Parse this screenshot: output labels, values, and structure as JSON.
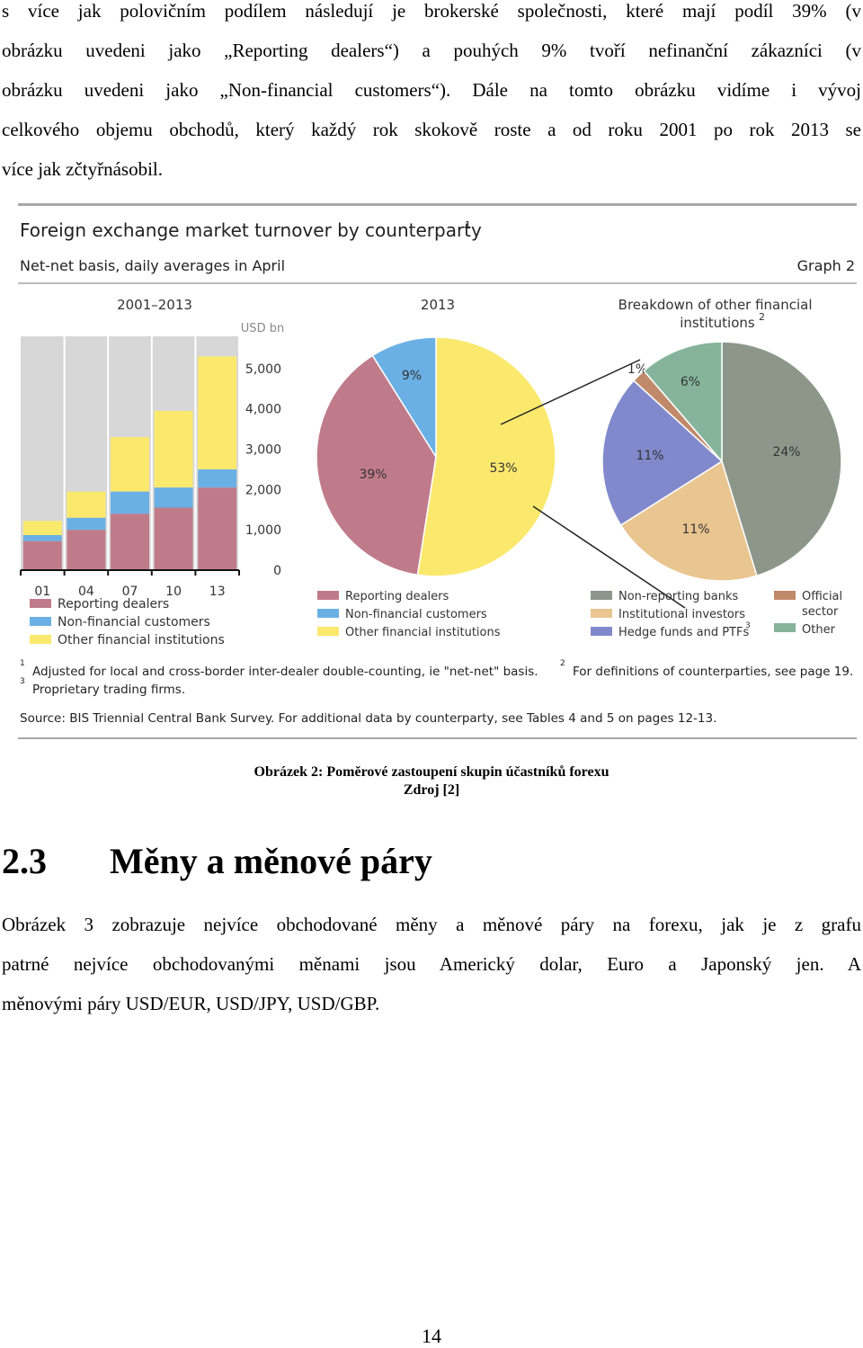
{
  "top_paragraph": {
    "lines": [
      "s více jak polovičním podílem následují je brokerské společnosti, které mají podíl 39% (v",
      "obrázku uvedeni jako „Reporting dealers“) a pouhých 9% tvoří nefinanční zákazníci (v",
      "obrázku uvedeni jako „Non-financial customers“). Dále na tomto obrázku vidíme i vývoj",
      "celkového objemu obchodů, který každý rok skokově roste a od roku 2001 po rok 2013 se",
      "více jak zčtyřnásobil."
    ]
  },
  "figure": {
    "title": "Foreign exchange market turnover by counterparty",
    "title_sup": "1",
    "subtitle": "Net-net basis, daily averages in April",
    "graph_label": "Graph 2",
    "colors": {
      "reporting": "#c07b8a",
      "nonfinancial": "#6ab0e4",
      "other_fin": "#fbe96e",
      "nonreporting": "#8c978a",
      "institutional": "#e9c590",
      "hedge": "#8189cc",
      "official": "#c08a6a",
      "other": "#85b49b",
      "plot_bg": "#d7d7d7"
    },
    "footnotes": [
      {
        "mark": "1",
        "text": "Adjusted for local and cross-border inter-dealer double-counting, ie \"net-net\" basis."
      },
      {
        "mark": "2",
        "text": "For definitions of counterparties, see page 19."
      },
      {
        "mark": "3",
        "text": "Proprietary trading firms."
      }
    ],
    "source": "Source: BIS Triennial Central Bank Survey. For additional data by counterparty, see Tables 4 and 5 on pages 12-13."
  },
  "chart_data": [
    {
      "type": "bar",
      "stacked": true,
      "title": "2001–2013",
      "unit": "USD bn",
      "categories": [
        "01",
        "04",
        "07",
        "10",
        "13"
      ],
      "series": [
        {
          "name": "Reporting dealers",
          "color": "#c07b8a",
          "values": [
            720,
            1000,
            1400,
            1550,
            2050
          ]
        },
        {
          "name": "Non-financial customers",
          "color": "#6ab0e4",
          "values": [
            150,
            300,
            550,
            500,
            450
          ]
        },
        {
          "name": "Other financial institutions",
          "color": "#fbe96e",
          "values": [
            350,
            650,
            1350,
            1900,
            2800
          ]
        }
      ],
      "yticks": [
        "5,000",
        "4,000",
        "3,000",
        "2,000",
        "1,000",
        "0"
      ],
      "ylim": [
        0,
        5800
      ]
    },
    {
      "type": "pie",
      "title": "2013",
      "slices": [
        {
          "name": "Other financial institutions",
          "value": 53,
          "label": "53%",
          "color": "#fbe96e"
        },
        {
          "name": "Reporting dealers",
          "value": 39,
          "label": "39%",
          "color": "#c07b8a"
        },
        {
          "name": "Non-financial customers",
          "value": 9,
          "label": "9%",
          "color": "#6ab0e4"
        }
      ],
      "legend": [
        "Reporting dealers",
        "Non-financial customers",
        "Other financial institutions"
      ]
    },
    {
      "type": "pie",
      "title": "Breakdown of other financial institutions",
      "title_sup": "2",
      "slices": [
        {
          "name": "Non-reporting banks",
          "value": 24,
          "label": "24%",
          "color": "#8c978a"
        },
        {
          "name": "Institutional investors",
          "value": 11,
          "label": "11%",
          "color": "#e9c590"
        },
        {
          "name": "Hedge funds and PTFs",
          "value": 11,
          "label": "11%",
          "color": "#8189cc"
        },
        {
          "name": "Official sector",
          "value": 1,
          "label": "1%",
          "color": "#c08a6a"
        },
        {
          "name": "Other",
          "value": 6,
          "label": "6%",
          "color": "#85b49b"
        }
      ],
      "legend": [
        {
          "text": "Non-reporting banks",
          "color": "#8c978a"
        },
        {
          "text": "Institutional investors",
          "color": "#e9c590"
        },
        {
          "text": "Hedge funds and PTFs",
          "sup": "3",
          "color": "#8189cc"
        },
        {
          "text": "Official sector",
          "color": "#c08a6a"
        },
        {
          "text": "Other",
          "color": "#85b49b"
        }
      ]
    }
  ],
  "caption": {
    "title": "Obrázek 2: Poměrové zastoupení skupin účastníků forexu",
    "source": "Zdroj [2]"
  },
  "section": {
    "number": "2.3",
    "title": "Měny a měnové páry"
  },
  "bottom_paragraph": {
    "lines": [
      "Obrázek 3 zobrazuje nejvíce obchodované měny a měnové páry na forexu, jak je z grafu",
      "patrné nejvíce obchodovanými měnami jsou Americký dolar, Euro a Japonský jen. A",
      "měnovými páry USD/EUR, USD/JPY, USD/GBP."
    ]
  },
  "page_number": "14"
}
